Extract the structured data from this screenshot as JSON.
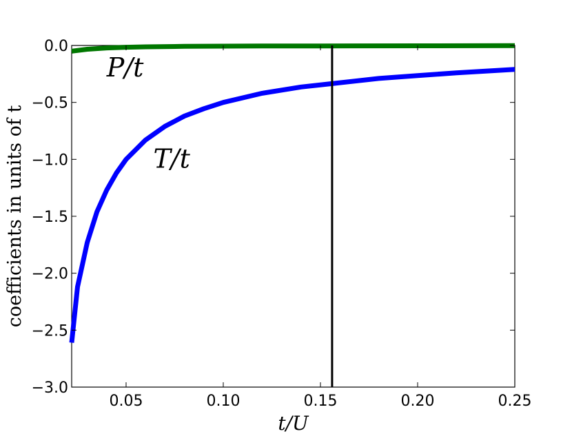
{
  "chart_data": {
    "type": "line",
    "title": "",
    "xlabel": "t/U",
    "ylabel": "coefficients in units of t",
    "xlim": [
      0.022,
      0.25
    ],
    "ylim": [
      -3.0,
      0.0
    ],
    "x_ticks": [
      0.05,
      0.1,
      0.15,
      0.2,
      0.25
    ],
    "x_tick_labels": [
      "0.05",
      "0.10",
      "0.15",
      "0.20",
      "0.25"
    ],
    "y_ticks": [
      0.0,
      -0.5,
      -1.0,
      -1.5,
      -2.0,
      -2.5,
      -3.0
    ],
    "y_tick_labels": [
      "0.0",
      "−0.5",
      "−1.0",
      "−1.5",
      "−2.0",
      "−2.5",
      "−3.0"
    ],
    "grid": false,
    "legend": "none",
    "series": [
      {
        "name": "P/t",
        "color": "#007700",
        "x": [
          0.022,
          0.03,
          0.04,
          0.05,
          0.06,
          0.08,
          0.1,
          0.12,
          0.15,
          0.2,
          0.25
        ],
        "y": [
          -0.05,
          -0.033,
          -0.022,
          -0.016,
          -0.012,
          -0.008,
          -0.006,
          -0.005,
          -0.004,
          -0.003,
          -0.002
        ]
      },
      {
        "name": "T/t",
        "color": "#0000ff",
        "x": [
          0.022,
          0.025,
          0.03,
          0.035,
          0.04,
          0.045,
          0.05,
          0.06,
          0.07,
          0.08,
          0.09,
          0.1,
          0.12,
          0.14,
          0.156,
          0.18,
          0.2,
          0.22,
          0.25
        ],
        "y": [
          -2.61,
          -2.12,
          -1.73,
          -1.46,
          -1.27,
          -1.12,
          -1.0,
          -0.83,
          -0.71,
          -0.62,
          -0.555,
          -0.5,
          -0.42,
          -0.365,
          -0.335,
          -0.29,
          -0.265,
          -0.24,
          -0.21
        ]
      }
    ],
    "vertical_line": {
      "x": 0.156,
      "color": "#000000"
    },
    "annotations": [
      {
        "text": "P/t",
        "x": 0.04,
        "y": -0.2
      },
      {
        "text": "T/t",
        "x": 0.064,
        "y": -1.0
      }
    ]
  }
}
